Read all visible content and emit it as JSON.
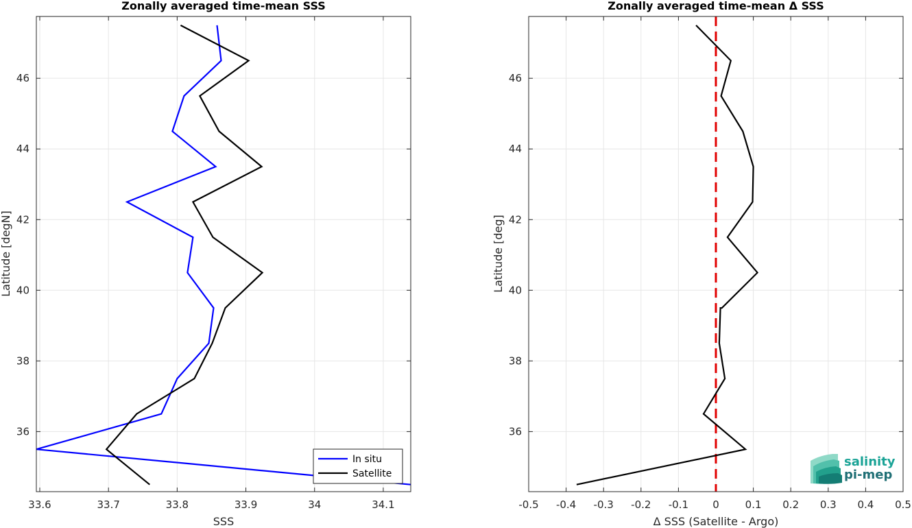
{
  "chart_data": [
    {
      "type": "line",
      "title": "Zonally averaged time-mean SSS",
      "xlabel": "SSS",
      "ylabel": "Latitude [degN]",
      "xlim": [
        33.595,
        34.14
      ],
      "ylim": [
        34.3,
        47.75
      ],
      "xticks": [
        33.6,
        33.7,
        33.8,
        33.9,
        34,
        34.1
      ],
      "xtick_labels": [
        "33.6",
        "33.7",
        "33.8",
        "33.9",
        "34",
        "34.1"
      ],
      "yticks": [
        36,
        38,
        40,
        42,
        44,
        46
      ],
      "ytick_labels": [
        "36",
        "38",
        "40",
        "42",
        "44",
        "46"
      ],
      "grid": true,
      "legend": "bottom-right",
      "series": [
        {
          "name": "In situ",
          "color": "#0000ff",
          "points": [
            [
              34.14,
              34.5
            ],
            [
              33.595,
              35.5
            ],
            [
              33.777,
              36.5
            ],
            [
              33.8,
              37.5
            ],
            [
              33.846,
              38.5
            ],
            [
              33.853,
              39.5
            ],
            [
              33.815,
              40.5
            ],
            [
              33.823,
              41.5
            ],
            [
              33.727,
              42.5
            ],
            [
              33.856,
              43.5
            ],
            [
              33.793,
              44.5
            ],
            [
              33.81,
              45.5
            ],
            [
              33.864,
              46.5
            ],
            [
              33.858,
              47.5
            ]
          ]
        },
        {
          "name": "Satellite",
          "color": "#000000",
          "points": [
            [
              33.76,
              34.5
            ],
            [
              33.697,
              35.5
            ],
            [
              33.741,
              36.5
            ],
            [
              33.825,
              37.5
            ],
            [
              33.851,
              38.5
            ],
            [
              33.87,
              39.5
            ],
            [
              33.924,
              40.5
            ],
            [
              33.852,
              41.5
            ],
            [
              33.823,
              42.5
            ],
            [
              33.923,
              43.5
            ],
            [
              33.861,
              44.5
            ],
            [
              33.833,
              45.5
            ],
            [
              33.904,
              46.5
            ],
            [
              33.805,
              47.5
            ]
          ]
        }
      ]
    },
    {
      "type": "line",
      "title": "Zonally averaged time-mean Δ SSS",
      "xlabel": "Δ SSS (Satellite - Argo)",
      "ylabel": "Latitude [deg]",
      "xlim": [
        -0.5,
        0.5
      ],
      "ylim": [
        34.3,
        47.75
      ],
      "xticks": [
        -0.5,
        -0.4,
        -0.3,
        -0.2,
        -0.1,
        0,
        0.1,
        0.2,
        0.3,
        0.4,
        0.5
      ],
      "xtick_labels": [
        "-0.5",
        "-0.4",
        "-0.3",
        "-0.2",
        "-0.1",
        "0",
        "0.1",
        "0.2",
        "0.3",
        "0.4",
        "0.5"
      ],
      "yticks": [
        36,
        38,
        40,
        42,
        44,
        46
      ],
      "ytick_labels": [
        "36",
        "38",
        "40",
        "42",
        "44",
        "46"
      ],
      "grid": true,
      "reference_line": {
        "x": 0,
        "color": "#e00000",
        "style": "dashed"
      },
      "series": [
        {
          "color": "#000000",
          "points": [
            [
              -0.372,
              34.5
            ],
            [
              0.079,
              35.5
            ],
            [
              -0.033,
              36.5
            ],
            [
              0.024,
              37.5
            ],
            [
              0.009,
              38.5
            ],
            [
              0.012,
              39.5
            ],
            [
              0.016,
              39.5
            ],
            [
              0.111,
              40.5
            ],
            [
              0.031,
              41.5
            ],
            [
              0.098,
              42.5
            ],
            [
              0.1,
              43.5
            ],
            [
              0.072,
              44.5
            ],
            [
              0.014,
              45.5
            ],
            [
              0.04,
              46.5
            ],
            [
              -0.053,
              47.5
            ]
          ]
        }
      ]
    }
  ],
  "logo": {
    "line1": "salinity",
    "line2": "pi-mep",
    "color1": "#1aa396",
    "color2": "#1f6f75"
  }
}
